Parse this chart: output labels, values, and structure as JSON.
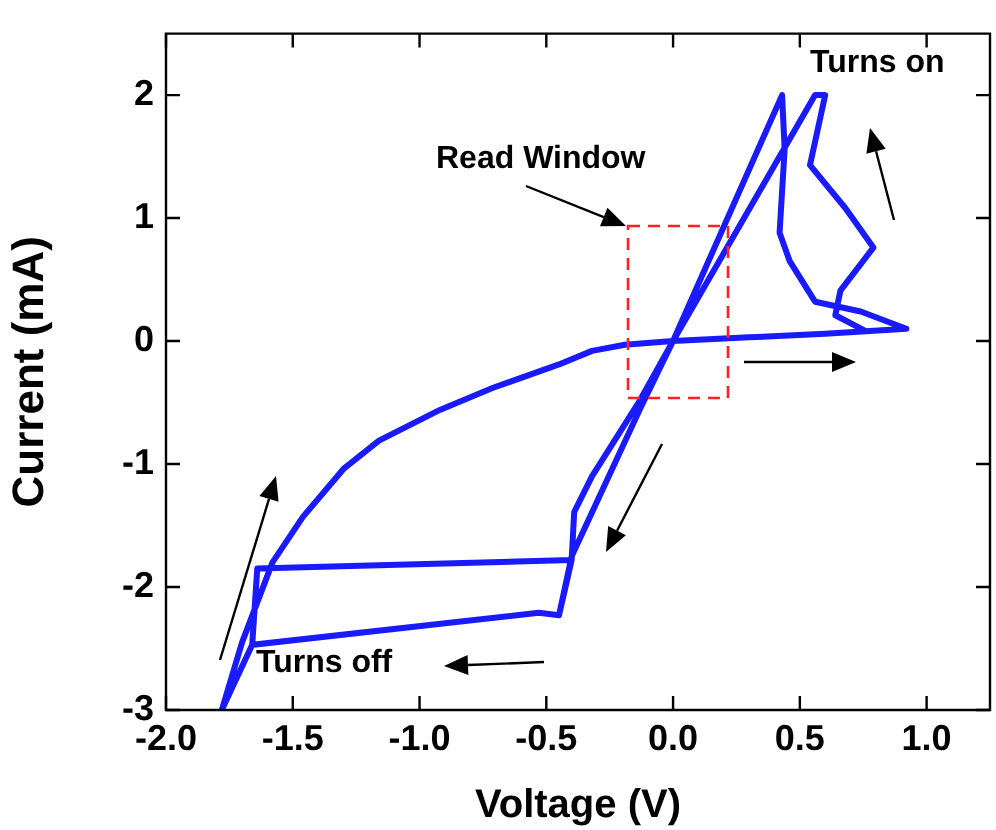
{
  "chart_data": {
    "type": "line",
    "xlabel": "Voltage (V)",
    "ylabel": "Current (mA)",
    "xlim": [
      -2.0,
      1.25
    ],
    "xticks": [
      {
        "value": -2.0,
        "label": "-2.0"
      },
      {
        "value": -1.5,
        "label": "-1.5"
      },
      {
        "value": -1.0,
        "label": "-1.0"
      },
      {
        "value": -0.5,
        "label": "-0.5"
      },
      {
        "value": 0.0,
        "label": "0.0"
      },
      {
        "value": 0.5,
        "label": "0.5"
      },
      {
        "value": 1.0,
        "label": "1.0"
      }
    ],
    "ylim": [
      -3,
      2.5
    ],
    "yticks": [
      -3,
      -2,
      -1,
      0,
      1,
      2
    ],
    "series": [
      {
        "color": "#1a1aff",
        "x": [
          0,
          0.3,
          0.6,
          0.92,
          0.76,
          0.64,
          0.66,
          0.79,
          0.68,
          0.54,
          0.6,
          0.56,
          0,
          -0.13,
          -0.32,
          -0.39,
          -0.4,
          -1.64,
          -1.66,
          -0.53,
          -0.45,
          -0.4,
          -0.39,
          -0.32,
          -0.13,
          0,
          -0.13,
          -0.4,
          -0.45,
          -0.53,
          -1.66,
          -1.78,
          -1.7,
          -1.58,
          -1.46,
          -1.3,
          -1.16,
          -0.92,
          -0.71,
          -0.45,
          -0.32,
          -0.19,
          0,
          0.43,
          0.44,
          0.42,
          0.46,
          0.56,
          0.74,
          0.92
        ],
        "values": [
          0,
          0.03,
          0.06,
          0.1,
          0.08,
          0.21,
          0.41,
          0.76,
          1.08,
          1.43,
          2.0,
          2.0,
          0,
          -0.48,
          -1.1,
          -1.39,
          -1.78,
          -1.85,
          -2.47,
          -2.21,
          -2.23,
          -1.78,
          -1.39,
          -1.1,
          -0.48,
          0,
          -0.55,
          -1.75,
          -2.23,
          -2.21,
          -2.47,
          -3.0,
          -2.45,
          -1.8,
          -1.43,
          -1.04,
          -0.81,
          -0.56,
          -0.38,
          -0.19,
          -0.08,
          -0.03,
          0,
          2.0,
          1.56,
          0.88,
          0.65,
          0.32,
          0.24,
          0.1
        ]
      }
    ],
    "annotations": [
      "Read Window",
      "Turns on",
      "Turns off"
    ],
    "marker": "none",
    "grid": false,
    "legend": false
  }
}
